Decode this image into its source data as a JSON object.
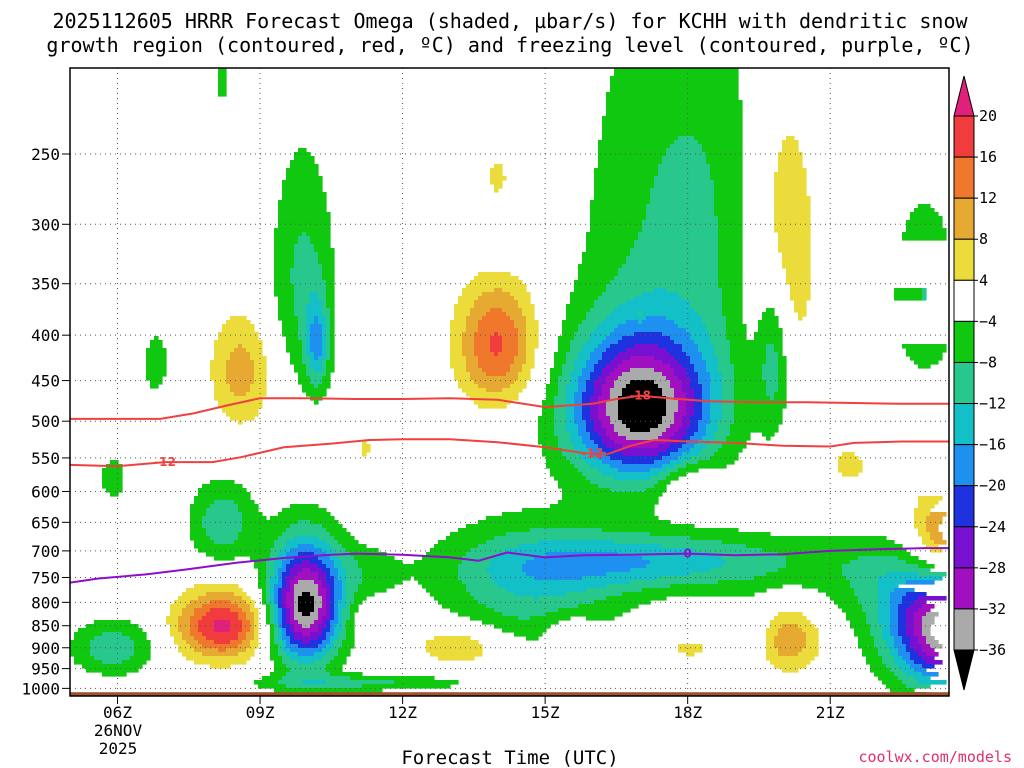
{
  "chart_data": {
    "type": "heatmap",
    "title_line1": "2025112605 HRRR Forecast Omega (shaded, µbar/s) for KCHH with dendritic snow",
    "title_line2": "growth region (contoured, red, ºC) and freezing level (contoured, purple, ºC)",
    "xlabel": "Forecast Time (UTC)",
    "x_ticks": [
      {
        "hour": 6,
        "label": "06Z"
      },
      {
        "hour": 9,
        "label": "09Z"
      },
      {
        "hour": 12,
        "label": "12Z"
      },
      {
        "hour": 15,
        "label": "15Z"
      },
      {
        "hour": 18,
        "label": "18Z"
      },
      {
        "hour": 21,
        "label": "21Z"
      }
    ],
    "x_date_line1": "26NOV",
    "x_date_line2": "2025",
    "x_range_hours": [
      5,
      23.5
    ],
    "y_ticks": [
      250,
      300,
      350,
      400,
      450,
      500,
      550,
      600,
      650,
      700,
      750,
      800,
      850,
      900,
      950,
      1000
    ],
    "y_range_mb": [
      200,
      1020
    ],
    "y_scale": "log-pressure",
    "grid": "dotted",
    "colorbar": {
      "labels": [
        "20",
        "16",
        "12",
        "8",
        "4",
        "−4",
        "−8",
        "−12",
        "−16",
        "−20",
        "−24",
        "−28",
        "−32",
        "−36"
      ],
      "levels": [
        20,
        16,
        12,
        8,
        4,
        -4,
        -8,
        -12,
        -16,
        -20,
        -24,
        -28,
        -32,
        -36
      ],
      "bins": [
        {
          "range": [
            20,
            999
          ],
          "color": "#e0207a"
        },
        {
          "range": [
            16,
            20
          ],
          "color": "#f03c3c"
        },
        {
          "range": [
            12,
            16
          ],
          "color": "#f0782c"
        },
        {
          "range": [
            8,
            12
          ],
          "color": "#e6aa32"
        },
        {
          "range": [
            4,
            8
          ],
          "color": "#ebdc3c"
        },
        {
          "range": [
            -4,
            4
          ],
          "color": "#ffffff"
        },
        {
          "range": [
            -8,
            -4
          ],
          "color": "#10c810"
        },
        {
          "range": [
            -12,
            -8
          ],
          "color": "#28c88c"
        },
        {
          "range": [
            -16,
            -12
          ],
          "color": "#14c0c8"
        },
        {
          "range": [
            -20,
            -16
          ],
          "color": "#1e90f0"
        },
        {
          "range": [
            -24,
            -20
          ],
          "color": "#1e32e0"
        },
        {
          "range": [
            -28,
            -24
          ],
          "color": "#7810d2"
        },
        {
          "range": [
            -32,
            -28
          ],
          "color": "#a010c0"
        },
        {
          "range": [
            -36,
            -32
          ],
          "color": "#aaaaaa"
        },
        {
          "range": [
            -999,
            -36
          ],
          "color": "#000000"
        }
      ]
    },
    "omega_cells": [
      {
        "hour": 8.2,
        "p": 208,
        "peak": -6,
        "rx": 0.13,
        "ry": 14
      },
      {
        "hour": 6.8,
        "p": 430,
        "peak": -7,
        "rx": 0.28,
        "ry": 38
      },
      {
        "hour": 9.9,
        "p": 345,
        "peak": -9,
        "rx": 0.7,
        "ry": 110
      },
      {
        "hour": 10.2,
        "p": 410,
        "peak": -13,
        "rx": 0.25,
        "ry": 50
      },
      {
        "hour": 8.6,
        "p": 440,
        "peak": 10,
        "rx": 0.65,
        "ry": 65
      },
      {
        "hour": 11.2,
        "p": 535,
        "peak": 5,
        "rx": 0.2,
        "ry": 22
      },
      {
        "hour": 10.7,
        "p": 610,
        "peak": 5,
        "rx": 0.4,
        "ry": 9
      },
      {
        "hour": 5.9,
        "p": 580,
        "peak": -6,
        "rx": 0.35,
        "ry": 40
      },
      {
        "hour": 7.1,
        "p": 630,
        "peak": 5,
        "rx": 0.06,
        "ry": 25
      },
      {
        "hour": 8.2,
        "p": 650,
        "peak": -11,
        "rx": 0.7,
        "ry": 70
      },
      {
        "hour": 9.95,
        "p": 805,
        "peak": -38,
        "rx": 0.75,
        "ry": 125
      },
      {
        "hour": 11.2,
        "p": 740,
        "peak": -5,
        "rx": 0.8,
        "ry": 60
      },
      {
        "hour": 11.0,
        "p": 985,
        "peak": -9,
        "rx": 2.4,
        "ry": 22
      },
      {
        "hour": 5.9,
        "p": 900,
        "peak": -11,
        "rx": 0.9,
        "ry": 65
      },
      {
        "hour": 8.2,
        "p": 850,
        "peak": 21,
        "rx": 0.95,
        "ry": 75
      },
      {
        "hour": 14.0,
        "p": 265,
        "peak": 5,
        "rx": 0.35,
        "ry": 22
      },
      {
        "hour": 14.0,
        "p": 320,
        "peak": -6,
        "rx": 0.35,
        "ry": 15
      },
      {
        "hour": 14.0,
        "p": 410,
        "peak": 17,
        "rx": 0.85,
        "ry": 65
      },
      {
        "hour": 11.5,
        "p": 830,
        "peak": 5,
        "rx": 0.5,
        "ry": 30
      },
      {
        "hour": 13.2,
        "p": 895,
        "peak": 9,
        "rx": 1.0,
        "ry": 50
      },
      {
        "hour": 14.7,
        "p": 770,
        "peak": -11,
        "rx": 2.0,
        "ry": 130
      },
      {
        "hour": 17.4,
        "p": 720,
        "peak": -14,
        "rx": 3.2,
        "ry": 55
      },
      {
        "hour": 15.5,
        "p": 855,
        "peak": 5,
        "rx": 0.6,
        "ry": 35
      },
      {
        "hour": 18.0,
        "p": 300,
        "peak": -9,
        "rx": 2.2,
        "ry": 180
      },
      {
        "hour": 19.8,
        "p": 420,
        "peak": -11,
        "rx": 0.35,
        "ry": 90
      },
      {
        "hour": 17.0,
        "p": 485,
        "peak": -38,
        "rx": 1.45,
        "ry": 90
      },
      {
        "hour": 17.0,
        "p": 380,
        "peak": 5,
        "rx": 0.06,
        "ry": 6
      },
      {
        "hour": 18.0,
        "p": 590,
        "peak": 8,
        "rx": 0.6,
        "ry": 40
      },
      {
        "hour": 18.1,
        "p": 900,
        "peak": 5,
        "rx": 0.9,
        "ry": 40
      },
      {
        "hour": 19.4,
        "p": 870,
        "peak": -8,
        "rx": 0.7,
        "ry": 80
      },
      {
        "hour": 20.0,
        "p": 320,
        "peak": 11,
        "rx": 0.8,
        "ry": 130
      },
      {
        "hour": 20.0,
        "p": 880,
        "peak": 14,
        "rx": 0.75,
        "ry": 75
      },
      {
        "hour": 21.4,
        "p": 560,
        "peak": 5,
        "rx": 0.6,
        "ry": 40
      },
      {
        "hour": 23.0,
        "p": 360,
        "peak": -8,
        "rx": 0.75,
        "ry": 90
      },
      {
        "hour": 23.6,
        "p": 690,
        "peak": 22,
        "rx": 0.9,
        "ry": 90
      },
      {
        "hour": 22.4,
        "p": 755,
        "peak": -7,
        "rx": 1.8,
        "ry": 90
      },
      {
        "hour": 23.6,
        "p": 860,
        "peak": -40,
        "rx": 1.3,
        "ry": 130
      }
    ],
    "isotherms": [
      {
        "name": "-18",
        "color": "#f04040",
        "label": "-18",
        "label_hour": 17.0,
        "points": [
          [
            5.0,
            497
          ],
          [
            6.9,
            497
          ],
          [
            7.6,
            490
          ],
          [
            8.3,
            480
          ],
          [
            9.0,
            471
          ],
          [
            10.0,
            471
          ],
          [
            11.0,
            472
          ],
          [
            12.0,
            472
          ],
          [
            13.0,
            471
          ],
          [
            14.0,
            473
          ],
          [
            15.0,
            482
          ],
          [
            16.0,
            478
          ],
          [
            16.5,
            472
          ],
          [
            17.0,
            468
          ],
          [
            17.8,
            472
          ],
          [
            18.5,
            475
          ],
          [
            19.5,
            476
          ],
          [
            20.5,
            476
          ],
          [
            21.5,
            477
          ],
          [
            22.5,
            478
          ],
          [
            23.5,
            478
          ]
        ]
      },
      {
        "name": "-12",
        "color": "#f04040",
        "label": "-12",
        "label_hour": 7.0,
        "label2_hour": 16.0,
        "points": [
          [
            5.0,
            560
          ],
          [
            6.0,
            562
          ],
          [
            7.0,
            556
          ],
          [
            8.0,
            556
          ],
          [
            8.6,
            549
          ],
          [
            9.5,
            535
          ],
          [
            10.5,
            530
          ],
          [
            11.3,
            525
          ],
          [
            12.0,
            524
          ],
          [
            13.0,
            524
          ],
          [
            14.0,
            528
          ],
          [
            15.0,
            535
          ],
          [
            15.8,
            543
          ],
          [
            16.3,
            545
          ],
          [
            16.8,
            533
          ],
          [
            17.3,
            525
          ],
          [
            18.0,
            527
          ],
          [
            19.0,
            529
          ],
          [
            20.0,
            533
          ],
          [
            21.0,
            534
          ],
          [
            21.5,
            529
          ],
          [
            22.5,
            527
          ],
          [
            23.5,
            527
          ]
        ]
      },
      {
        "name": "0",
        "color": "#8c10c8",
        "label": "0",
        "label_hour": 18.0,
        "points": [
          [
            5.0,
            760
          ],
          [
            5.6,
            752
          ],
          [
            6.6,
            744
          ],
          [
            7.4,
            735
          ],
          [
            8.5,
            722
          ],
          [
            9.5,
            713
          ],
          [
            10.5,
            707
          ],
          [
            11.0,
            705
          ],
          [
            12.0,
            707
          ],
          [
            13.0,
            712
          ],
          [
            13.6,
            718
          ],
          [
            14.2,
            703
          ],
          [
            15.0,
            712
          ],
          [
            15.8,
            708
          ],
          [
            16.8,
            707
          ],
          [
            18.0,
            705
          ],
          [
            19.0,
            708
          ],
          [
            20.0,
            706
          ],
          [
            21.0,
            700
          ],
          [
            22.0,
            697
          ],
          [
            23.0,
            695
          ],
          [
            23.5,
            695
          ]
        ]
      }
    ],
    "ground": {
      "color": "#a0522d",
      "p_top": 1010
    },
    "credit": "coolwx.com/models"
  }
}
